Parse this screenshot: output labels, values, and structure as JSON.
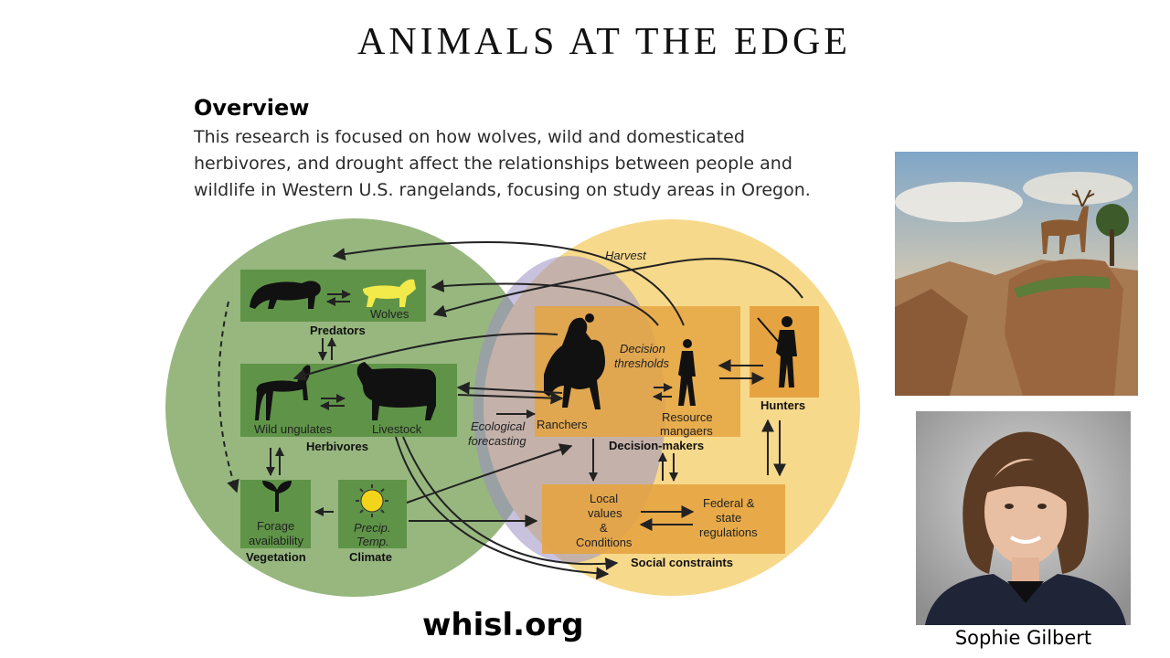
{
  "title": "ANIMALS AT THE EDGE",
  "overview": {
    "heading": "Overview",
    "lines": [
      "This research is focused on how wolves, wild and domesticated",
      "herbivores, and drought affect the relationships between people and",
      "wildlife in Western U.S. rangelands, focusing on study areas in Oregon."
    ]
  },
  "diagram": {
    "harvest": "Harvest",
    "predators": {
      "label": "Predators",
      "wolves": "Wolves"
    },
    "herbivores": {
      "label": "Herbivores",
      "wild_ungulates": "Wild ungulates",
      "livestock": "Livestock"
    },
    "vegetation": {
      "label": "Vegetation",
      "forage_1": "Forage",
      "forage_2": "availability"
    },
    "climate": {
      "label": "Climate",
      "precip": "Precip.",
      "temp": "Temp."
    },
    "ecological_forecasting": {
      "line1": "Ecological",
      "line2": "forecasting"
    },
    "decision_makers": {
      "label": "Decision-makers",
      "ranchers": "Ranchers",
      "decision_thresholds_1": "Decision",
      "decision_thresholds_2": "thresholds",
      "resource_1": "Resource",
      "resource_2": "mangaers",
      "hunters": "Hunters"
    },
    "social_constraints": {
      "label": "Social constraints",
      "local_1": "Local",
      "local_2": "values",
      "local_3": "&",
      "local_4": "Conditions",
      "federal_1": "Federal &",
      "federal_2": "state",
      "federal_3": "regulations"
    },
    "colors": {
      "green_circle": "#97b77f",
      "yellow_circle": "#f7d98c",
      "green_box": "#5f9448",
      "orange_box": "#e5a441",
      "purple_overlay": "#9a8fc2"
    }
  },
  "footer": {
    "url": "whisl.org"
  },
  "photo_caption": "Sophie Gilbert"
}
